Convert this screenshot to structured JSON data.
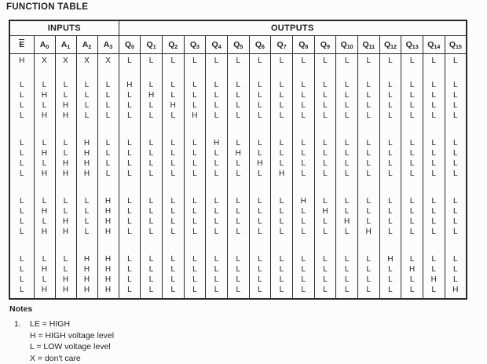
{
  "title": "FUNCTION TABLE",
  "table": {
    "input_header": "INPUTS",
    "output_header": "OUTPUTS",
    "columns": [
      {
        "base": "E",
        "sub": "",
        "overline": true
      },
      {
        "base": "A",
        "sub": "0"
      },
      {
        "base": "A",
        "sub": "1"
      },
      {
        "base": "A",
        "sub": "2"
      },
      {
        "base": "A",
        "sub": "3"
      },
      {
        "base": "Q",
        "sub": "0"
      },
      {
        "base": "Q",
        "sub": "1"
      },
      {
        "base": "Q",
        "sub": "2"
      },
      {
        "base": "Q",
        "sub": "3"
      },
      {
        "base": "Q",
        "sub": "4"
      },
      {
        "base": "Q",
        "sub": "5"
      },
      {
        "base": "Q",
        "sub": "6"
      },
      {
        "base": "Q",
        "sub": "7"
      },
      {
        "base": "Q",
        "sub": "8"
      },
      {
        "base": "Q",
        "sub": "9"
      },
      {
        "base": "Q",
        "sub": "10"
      },
      {
        "base": "Q",
        "sub": "11"
      },
      {
        "base": "Q",
        "sub": "12"
      },
      {
        "base": "Q",
        "sub": "13"
      },
      {
        "base": "Q",
        "sub": "14"
      },
      {
        "base": "Q",
        "sub": "15"
      }
    ],
    "groups": [
      {
        "rows": [
          [
            "H",
            "X",
            "X",
            "X",
            "X",
            "L",
            "L",
            "L",
            "L",
            "L",
            "L",
            "L",
            "L",
            "L",
            "L",
            "L",
            "L",
            "L",
            "L",
            "L",
            "L"
          ]
        ]
      },
      {
        "rows": [
          [
            "L",
            "L",
            "L",
            "L",
            "L",
            "H",
            "L",
            "L",
            "L",
            "L",
            "L",
            "L",
            "L",
            "L",
            "L",
            "L",
            "L",
            "L",
            "L",
            "L",
            "L"
          ],
          [
            "L",
            "H",
            "L",
            "L",
            "L",
            "L",
            "H",
            "L",
            "L",
            "L",
            "L",
            "L",
            "L",
            "L",
            "L",
            "L",
            "L",
            "L",
            "L",
            "L",
            "L"
          ],
          [
            "L",
            "L",
            "H",
            "L",
            "L",
            "L",
            "L",
            "H",
            "L",
            "L",
            "L",
            "L",
            "L",
            "L",
            "L",
            "L",
            "L",
            "L",
            "L",
            "L",
            "L"
          ],
          [
            "L",
            "H",
            "H",
            "L",
            "L",
            "L",
            "L",
            "L",
            "H",
            "L",
            "L",
            "L",
            "L",
            "L",
            "L",
            "L",
            "L",
            "L",
            "L",
            "L",
            "L"
          ]
        ]
      },
      {
        "rows": [
          [
            "L",
            "L",
            "L",
            "H",
            "L",
            "L",
            "L",
            "L",
            "L",
            "H",
            "L",
            "L",
            "L",
            "L",
            "L",
            "L",
            "L",
            "L",
            "L",
            "L",
            "L"
          ],
          [
            "L",
            "H",
            "L",
            "H",
            "L",
            "L",
            "L",
            "L",
            "L",
            "L",
            "H",
            "L",
            "L",
            "L",
            "L",
            "L",
            "L",
            "L",
            "L",
            "L",
            "L"
          ],
          [
            "L",
            "L",
            "H",
            "H",
            "L",
            "L",
            "L",
            "L",
            "L",
            "L",
            "L",
            "H",
            "L",
            "L",
            "L",
            "L",
            "L",
            "L",
            "L",
            "L",
            "L"
          ],
          [
            "L",
            "H",
            "H",
            "H",
            "L",
            "L",
            "L",
            "L",
            "L",
            "L",
            "L",
            "L",
            "H",
            "L",
            "L",
            "L",
            "L",
            "L",
            "L",
            "L",
            "L"
          ]
        ]
      },
      {
        "rows": [
          [
            "L",
            "L",
            "L",
            "L",
            "H",
            "L",
            "L",
            "L",
            "L",
            "L",
            "L",
            "L",
            "L",
            "H",
            "L",
            "L",
            "L",
            "L",
            "L",
            "L",
            "L"
          ],
          [
            "L",
            "H",
            "L",
            "L",
            "H",
            "L",
            "L",
            "L",
            "L",
            "L",
            "L",
            "L",
            "L",
            "L",
            "H",
            "L",
            "L",
            "L",
            "L",
            "L",
            "L"
          ],
          [
            "L",
            "L",
            "H",
            "L",
            "H",
            "L",
            "L",
            "L",
            "L",
            "L",
            "L",
            "L",
            "L",
            "L",
            "L",
            "H",
            "L",
            "L",
            "L",
            "L",
            "L"
          ],
          [
            "L",
            "H",
            "H",
            "L",
            "H",
            "L",
            "L",
            "L",
            "L",
            "L",
            "L",
            "L",
            "L",
            "L",
            "L",
            "L",
            "H",
            "L",
            "L",
            "L",
            "L"
          ]
        ]
      },
      {
        "rows": [
          [
            "L",
            "L",
            "L",
            "H",
            "H",
            "L",
            "L",
            "L",
            "L",
            "L",
            "L",
            "L",
            "L",
            "L",
            "L",
            "L",
            "L",
            "H",
            "L",
            "L",
            "L"
          ],
          [
            "L",
            "H",
            "L",
            "H",
            "H",
            "L",
            "L",
            "L",
            "L",
            "L",
            "L",
            "L",
            "L",
            "L",
            "L",
            "L",
            "L",
            "L",
            "H",
            "L",
            "L"
          ],
          [
            "L",
            "L",
            "H",
            "H",
            "H",
            "L",
            "L",
            "L",
            "L",
            "L",
            "L",
            "L",
            "L",
            "L",
            "L",
            "L",
            "L",
            "L",
            "L",
            "H",
            "L"
          ],
          [
            "L",
            "H",
            "H",
            "H",
            "H",
            "L",
            "L",
            "L",
            "L",
            "L",
            "L",
            "L",
            "L",
            "L",
            "L",
            "L",
            "L",
            "L",
            "L",
            "L",
            "H"
          ]
        ]
      }
    ]
  },
  "notes": {
    "heading": "Notes",
    "item_number": "1.",
    "lines": [
      "LE = HIGH",
      "H = HIGH voltage level",
      "L = LOW voltage level",
      "X = don't care"
    ]
  }
}
